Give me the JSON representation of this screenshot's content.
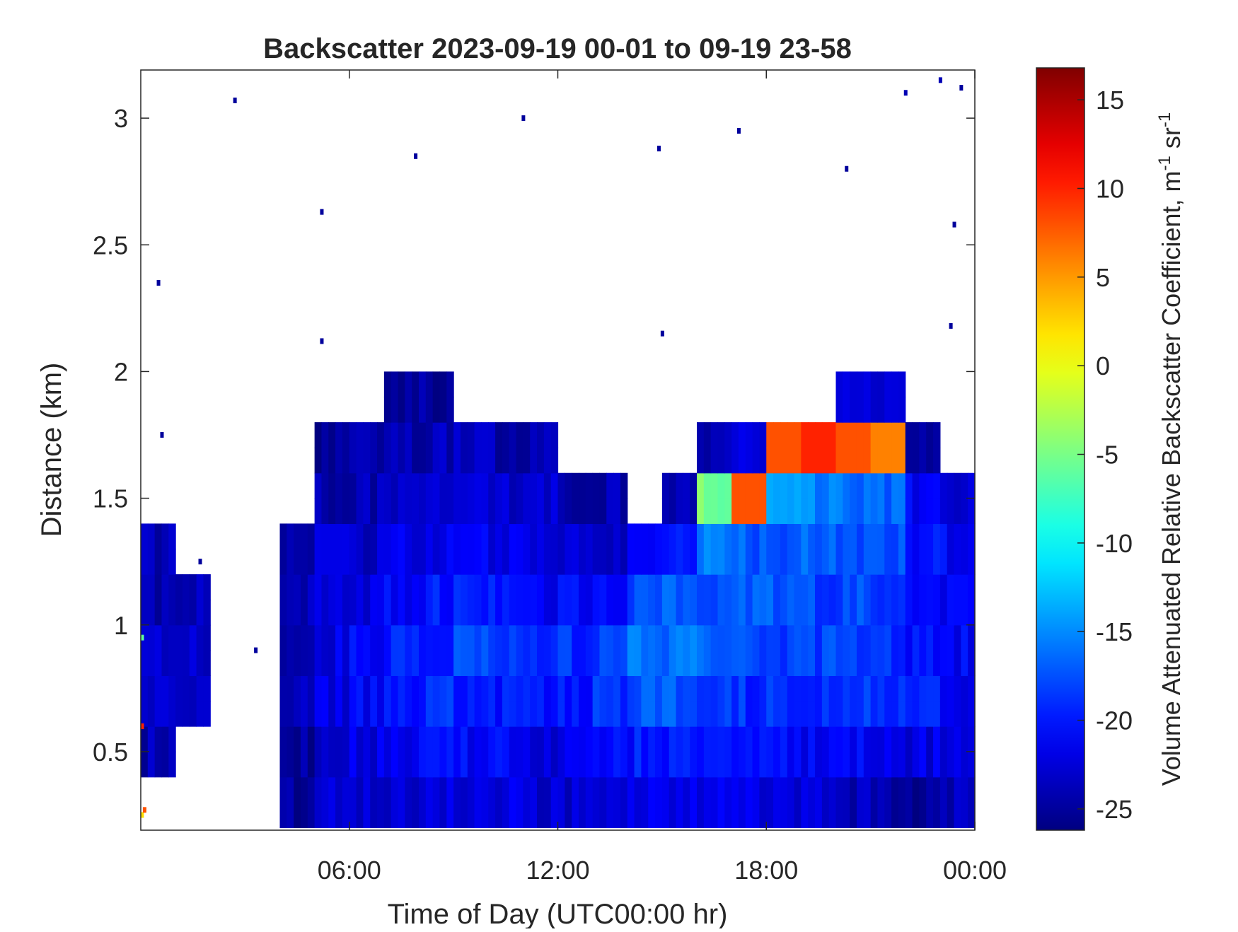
{
  "chart_data": {
    "type": "heatmap",
    "title": "Backscatter 2023-09-19 00-01 to 09-19 23-58",
    "xlabel": "Time of Day (UTC00:00 hr)",
    "ylabel": "Distance (km)",
    "colorbar_label": "Volume Attenuated Relative Backscatter Coefficient, m",
    "colorbar_label_sup1": "-1",
    "colorbar_label_mid": " sr",
    "colorbar_label_sup2": "-1",
    "colormap": "jet",
    "xlim_hours": [
      0,
      24
    ],
    "ylim": [
      0.19,
      3.19
    ],
    "clim": [
      -26.2,
      16.8
    ],
    "x_ticks": [
      {
        "hour": 6,
        "label": "06:00"
      },
      {
        "hour": 12,
        "label": "12:00"
      },
      {
        "hour": 18,
        "label": "18:00"
      },
      {
        "hour": 24,
        "label": "00:00"
      }
    ],
    "y_ticks": [
      {
        "value": 0.5,
        "label": "0.5"
      },
      {
        "value": 1,
        "label": "1"
      },
      {
        "value": 1.5,
        "label": "1.5"
      },
      {
        "value": 2,
        "label": "2"
      },
      {
        "value": 2.5,
        "label": "2.5"
      },
      {
        "value": 3,
        "label": "3"
      }
    ],
    "colorbar_ticks": [
      {
        "value": 15,
        "label": "15"
      },
      {
        "value": 10,
        "label": "10"
      },
      {
        "value": 5,
        "label": "5"
      },
      {
        "value": 0,
        "label": "0"
      },
      {
        "value": -5,
        "label": "-5"
      },
      {
        "value": -10,
        "label": "-10"
      },
      {
        "value": -15,
        "label": "-15"
      },
      {
        "value": -20,
        "label": "-20"
      },
      {
        "value": -25,
        "label": "-25"
      }
    ],
    "grid": false,
    "time_bin_hours": 1,
    "height_bins_km": [
      0.3,
      0.5,
      0.7,
      0.9,
      1.1,
      1.3,
      1.5,
      1.7,
      1.9
    ],
    "height_bin_width_km": 0.2,
    "values": [
      [
        null,
        -24,
        -23,
        -23,
        -24,
        -24,
        null,
        null,
        null
      ],
      [
        null,
        null,
        -24,
        -23,
        -24,
        null,
        null,
        null,
        null
      ],
      [
        null,
        null,
        null,
        null,
        null,
        null,
        null,
        null,
        null
      ],
      [
        null,
        null,
        null,
        null,
        null,
        null,
        null,
        null,
        null
      ],
      [
        -25,
        -25,
        -24,
        -24,
        -24,
        -25,
        null,
        null,
        null
      ],
      [
        -23,
        -23,
        -22,
        -22,
        -22,
        -23,
        -24,
        -25,
        null
      ],
      [
        -23,
        -22,
        -21,
        -21,
        -22,
        -23,
        -24,
        -25,
        null
      ],
      [
        -23,
        -22,
        -20,
        -20,
        -21,
        -22,
        -23,
        -24,
        -25
      ],
      [
        -22,
        -21,
        -19,
        -19,
        -20,
        -22,
        -23,
        -24,
        -25
      ],
      [
        -22,
        -21,
        -19,
        -18,
        -20,
        -21,
        -23,
        -24,
        null
      ],
      [
        -22,
        -21,
        -20,
        -19,
        -20,
        -22,
        -23,
        -24,
        null
      ],
      [
        -23,
        -22,
        -20,
        -20,
        -21,
        -22,
        -23,
        -24,
        null
      ],
      [
        -23,
        -22,
        -20,
        -19,
        -21,
        -22,
        -24,
        null,
        null
      ],
      [
        -23,
        -21,
        -19,
        -18,
        -20,
        -23,
        -24,
        null,
        null
      ],
      [
        -22,
        -20,
        -17,
        -16,
        -18,
        -22,
        null,
        null,
        null
      ],
      [
        -22,
        -20,
        -17,
        -16,
        -17,
        -20,
        -24,
        null,
        null
      ],
      [
        -22,
        -20,
        -18,
        -17,
        -17,
        -15,
        -5,
        -24,
        null
      ],
      [
        -22,
        -21,
        -19,
        -18,
        -17,
        -17,
        8,
        -23,
        null
      ],
      [
        -22,
        -21,
        -19,
        -18,
        -17,
        -17,
        -14,
        8,
        null
      ],
      [
        -22,
        -21,
        -19,
        -18,
        -18,
        -17,
        -15,
        10,
        null
      ],
      [
        -24,
        -21,
        -19,
        -18,
        -18,
        -17,
        -16,
        8,
        -23
      ],
      [
        -24,
        -21,
        -19,
        -19,
        -19,
        -18,
        -17,
        6,
        -23
      ],
      [
        -25,
        -22,
        -20,
        -20,
        -20,
        -20,
        -21,
        -24,
        null
      ],
      [
        -24,
        -22,
        -21,
        -21,
        -21,
        -21,
        -22,
        null,
        null
      ]
    ],
    "isolated_returns": [
      [
        0.03,
        0.25,
        2
      ],
      [
        0.1,
        0.27,
        8
      ],
      [
        0.03,
        0.6,
        10
      ],
      [
        0.03,
        0.95,
        -6
      ],
      [
        0.5,
        2.35,
        -25
      ],
      [
        2.7,
        3.07,
        -25
      ],
      [
        7.9,
        2.85,
        -25
      ],
      [
        5.2,
        2.63,
        -25
      ],
      [
        5.2,
        2.12,
        -25
      ],
      [
        11.0,
        3.0,
        -25
      ],
      [
        14.9,
        2.88,
        -25
      ],
      [
        15.0,
        2.15,
        -25
      ],
      [
        17.2,
        2.95,
        -25
      ],
      [
        20.3,
        2.8,
        -25
      ],
      [
        23.4,
        2.58,
        -25
      ],
      [
        23.0,
        3.15,
        -24
      ],
      [
        22.0,
        3.1,
        -24
      ],
      [
        23.6,
        3.12,
        -25
      ],
      [
        23.3,
        2.18,
        -25
      ],
      [
        3.3,
        0.9,
        -25
      ],
      [
        0.6,
        1.75,
        -25
      ],
      [
        1.7,
        1.25,
        -25
      ]
    ]
  }
}
